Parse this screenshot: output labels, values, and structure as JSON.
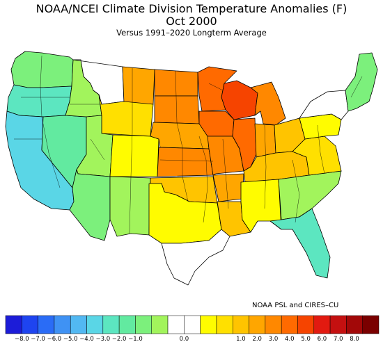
{
  "title": "NOAA/NCEI Climate Division Temperature Anomalies (F)",
  "period": "Oct 2000",
  "subtitle": "Versus 1991–2020 Longterm Average",
  "credit": "NOAA PSL and CIRES–CU",
  "legend": {
    "colors": [
      "#1c1cd8",
      "#1e44f0",
      "#2a6cf6",
      "#3f92f4",
      "#52b8f2",
      "#5ad6e6",
      "#5ce6c0",
      "#62eaa0",
      "#7cf07c",
      "#a2f45c",
      "#ffffff",
      "#ffffff",
      "#fffc00",
      "#ffe000",
      "#ffc400",
      "#ffa600",
      "#ff8800",
      "#ff6a00",
      "#f64400",
      "#e21a10",
      "#c41010",
      "#a20808",
      "#7a0000"
    ],
    "labels": [
      "−8.0",
      "−7.0",
      "−6.0",
      "−5.0",
      "−4.0",
      "−3.0",
      "−2.0",
      "−1.0",
      "0.0",
      "1.0",
      "2.0",
      "3.0",
      "4.0",
      "5.0",
      "6.0",
      "7.0",
      "8.0"
    ]
  },
  "regions": [
    {
      "name": "Washington",
      "color": "#7cf07c"
    },
    {
      "name": "Oregon",
      "color": "#5ce6c0"
    },
    {
      "name": "California",
      "color": "#5ad6e6"
    },
    {
      "name": "Nevada",
      "color": "#62eaa0"
    },
    {
      "name": "Idaho",
      "color": "#a2f45c"
    },
    {
      "name": "Montana West",
      "color": "#ffffff"
    },
    {
      "name": "Montana East",
      "color": "#ffa600"
    },
    {
      "name": "Wyoming",
      "color": "#ffe000"
    },
    {
      "name": "Utah",
      "color": "#a2f45c"
    },
    {
      "name": "Arizona",
      "color": "#7cf07c"
    },
    {
      "name": "Colorado",
      "color": "#fffc00"
    },
    {
      "name": "New Mexico",
      "color": "#a2f45c"
    },
    {
      "name": "North Dakota",
      "color": "#ff8800"
    },
    {
      "name": "South Dakota",
      "color": "#ff8800"
    },
    {
      "name": "Nebraska",
      "color": "#ffa600"
    },
    {
      "name": "Kansas",
      "color": "#ff8800"
    },
    {
      "name": "Oklahoma",
      "color": "#ffc400"
    },
    {
      "name": "Texas North",
      "color": "#fffc00"
    },
    {
      "name": "Texas South",
      "color": "#ffffff"
    },
    {
      "name": "Minnesota",
      "color": "#ff6a00"
    },
    {
      "name": "Iowa",
      "color": "#ff6a00"
    },
    {
      "name": "Missouri",
      "color": "#ff8800"
    },
    {
      "name": "Arkansas",
      "color": "#ffa600"
    },
    {
      "name": "Louisiana",
      "color": "#ffc400"
    },
    {
      "name": "Wisconsin",
      "color": "#f64400"
    },
    {
      "name": "Illinois",
      "color": "#ff6a00"
    },
    {
      "name": "Michigan",
      "color": "#ff8800"
    },
    {
      "name": "Indiana",
      "color": "#ffa600"
    },
    {
      "name": "Ohio",
      "color": "#ffc400"
    },
    {
      "name": "Kentucky Tennessee",
      "color": "#ffc400"
    },
    {
      "name": "Mississippi Alabama",
      "color": "#fffc00"
    },
    {
      "name": "Georgia Carolinas",
      "color": "#a2f45c"
    },
    {
      "name": "Florida",
      "color": "#5ce6c0"
    },
    {
      "name": "Virginia",
      "color": "#ffe000"
    },
    {
      "name": "Pennsylvania",
      "color": "#fffc00"
    },
    {
      "name": "New York",
      "color": "#ffffff"
    },
    {
      "name": "New England",
      "color": "#7cf07c"
    }
  ]
}
